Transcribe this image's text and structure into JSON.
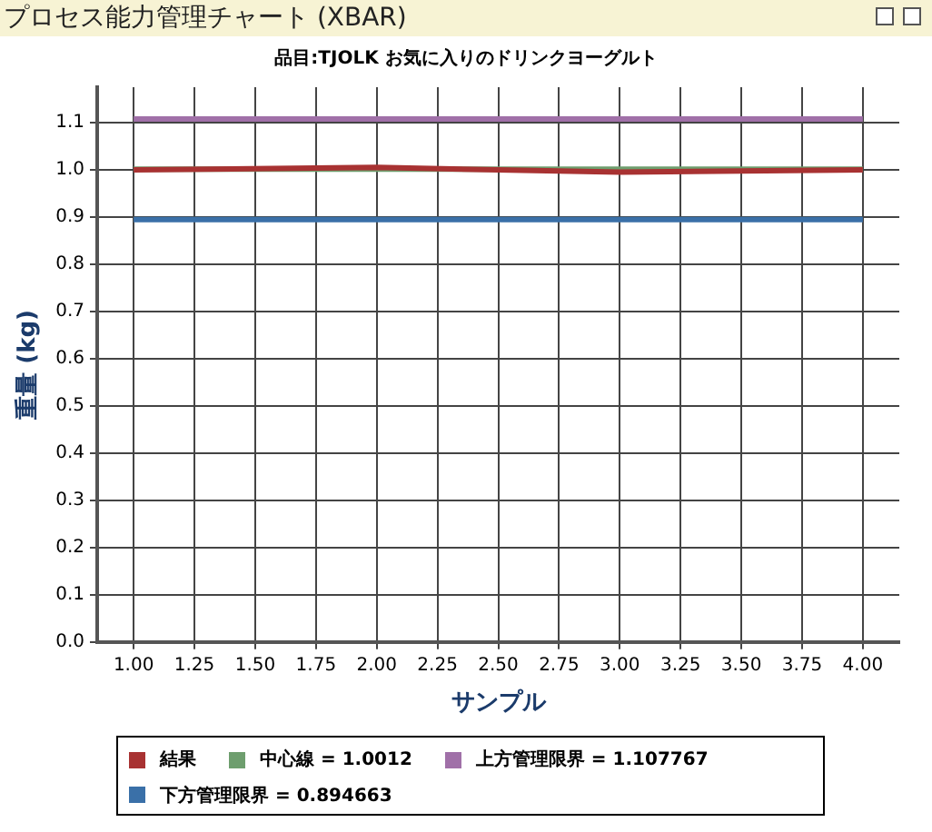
{
  "chart_data": {
    "type": "line",
    "title": "プロセス能力管理チャート (XBAR)",
    "subtitle": "品目:TJOLK お気に入りのドリンクヨーグルト",
    "xlabel": "サンプル",
    "ylabel": "重量 (kg)",
    "x": [
      1,
      2,
      3,
      4
    ],
    "series": [
      {
        "name": "結果",
        "color": "#a83232",
        "values": [
          1.0,
          1.005,
          0.995,
          1.0
        ]
      },
      {
        "name": "中心線 = 1.0012",
        "color": "#6e9e6e",
        "values": [
          1.0012,
          1.0012,
          1.0012,
          1.0012
        ]
      },
      {
        "name": "上方管理限界 = 1.107767",
        "color": "#a070a8",
        "values": [
          1.107767,
          1.107767,
          1.107767,
          1.107767
        ]
      },
      {
        "name": "下方管理限界 = 0.894663",
        "color": "#3a70a8",
        "values": [
          0.894663,
          0.894663,
          0.894663,
          0.894663
        ]
      }
    ],
    "xlim": [
      0.85,
      4.15
    ],
    "xticks": [
      {
        "value": 1,
        "label": "1.00"
      },
      {
        "value": 1.25,
        "label": "1.25"
      },
      {
        "value": 1.5,
        "label": "1.50"
      },
      {
        "value": 1.75,
        "label": "1.75"
      },
      {
        "value": 2,
        "label": "2.00"
      },
      {
        "value": 2.25,
        "label": "2.25"
      },
      {
        "value": 2.5,
        "label": "2.50"
      },
      {
        "value": 2.75,
        "label": "2.75"
      },
      {
        "value": 3,
        "label": "3.00"
      },
      {
        "value": 3.25,
        "label": "3.25"
      },
      {
        "value": 3.5,
        "label": "3.50"
      },
      {
        "value": 3.75,
        "label": "3.75"
      },
      {
        "value": 4,
        "label": "4.00"
      }
    ],
    "ylim": [
      0,
      1.175
    ],
    "yticks": [
      {
        "value": 0,
        "label": "0.0"
      },
      0.1,
      0.2,
      0.3,
      0.4,
      0.5,
      0.6,
      0.7,
      0.8,
      0.9,
      {
        "value": 1,
        "label": "1.0"
      },
      1.1
    ],
    "grid": true,
    "legend": "bottom",
    "marker": "none",
    "line_style": "solid"
  }
}
